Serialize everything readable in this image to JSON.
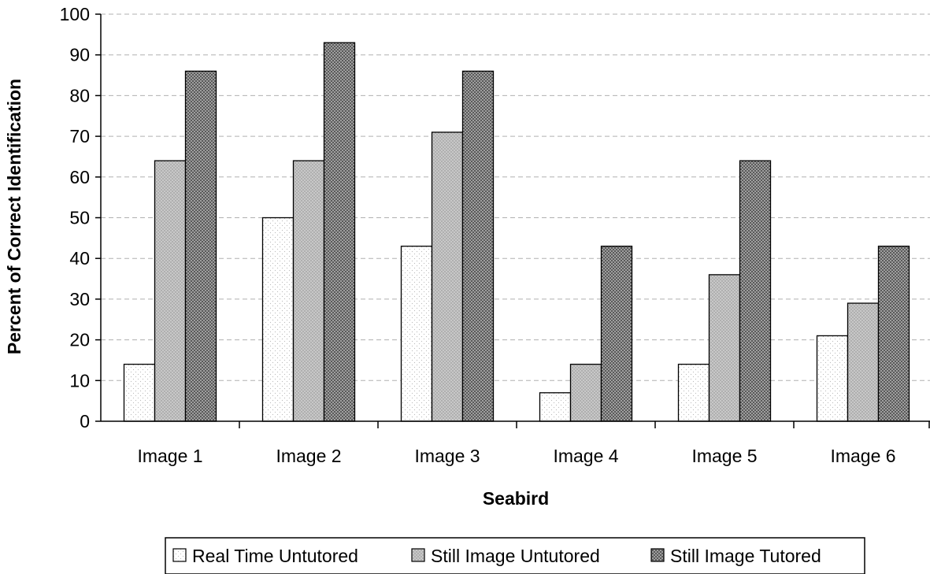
{
  "chart_data": {
    "type": "bar",
    "title": "",
    "xlabel": "Seabird",
    "ylabel": "Percent of Correct Identification",
    "ylim": [
      0,
      100
    ],
    "yticks": [
      0,
      10,
      20,
      30,
      40,
      50,
      60,
      70,
      80,
      90,
      100
    ],
    "categories": [
      "Image 1",
      "Image 2",
      "Image 3",
      "Image 4",
      "Image 5",
      "Image 6"
    ],
    "series": [
      {
        "name": "Real Time Untutored",
        "values": [
          14,
          50,
          43,
          7,
          14,
          21
        ],
        "color": "#ffffff",
        "pattern": "light-dots"
      },
      {
        "name": "Still Image Untutored",
        "values": [
          64,
          64,
          71,
          14,
          36,
          29
        ],
        "color": "#c0c0c0",
        "pattern": "medium-dots"
      },
      {
        "name": "Still Image Tutored",
        "values": [
          86,
          93,
          86,
          43,
          64,
          43
        ],
        "color": "#808080",
        "pattern": "dense-dots"
      }
    ],
    "grid": true,
    "gridStyle": "dashed",
    "legend": "bottom"
  }
}
